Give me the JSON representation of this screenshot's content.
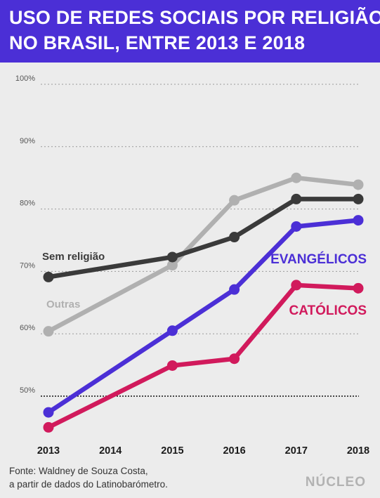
{
  "title": {
    "line1": "USO DE REDES SOCIAIS POR RELIGIÃO",
    "line2": "NO BRASIL, ENTRE 2013 E 2018"
  },
  "footer": {
    "line1": "Fonte: Waldney de Souza Costa,",
    "line2": "a partir de dados do Latinobarómetro."
  },
  "brand": "NÚCLEO",
  "colors": {
    "header_bg": "#4b2fd6",
    "background": "#ececec",
    "sem_religiao": "#3a3a3a",
    "outras": "#b0b0b0",
    "evangelicos": "#4b2fd6",
    "catolicos": "#d11a5c"
  },
  "chart_data": {
    "type": "line",
    "x": [
      "2013",
      "2014",
      "2015",
      "2016",
      "2017",
      "2018"
    ],
    "ylim": [
      45,
      100
    ],
    "y_ticks": [
      "50%",
      "60%",
      "70%",
      "80%",
      "90%",
      "100%"
    ],
    "grid": true,
    "series": [
      {
        "name": "Outras",
        "color": "#b0b0b0",
        "points": [
          [
            2013,
            60.4
          ],
          [
            2015,
            71.0
          ],
          [
            2016,
            81.4
          ],
          [
            2017,
            85.0
          ],
          [
            2018,
            83.9
          ]
        ]
      },
      {
        "name": "Sem religião",
        "color": "#3a3a3a",
        "points": [
          [
            2013,
            69.1
          ],
          [
            2015,
            72.3
          ],
          [
            2016,
            75.5
          ],
          [
            2017,
            81.6
          ],
          [
            2018,
            81.6
          ]
        ]
      },
      {
        "name": "EVANGÉLICOS",
        "color": "#4b2fd6",
        "points": [
          [
            2013,
            47.4
          ],
          [
            2015,
            60.5
          ],
          [
            2016,
            67.1
          ],
          [
            2017,
            77.2
          ],
          [
            2018,
            78.2
          ]
        ]
      },
      {
        "name": "CATÓLICOS",
        "color": "#d11a5c",
        "points": [
          [
            2013,
            45.0
          ],
          [
            2015,
            54.9
          ],
          [
            2016,
            56.0
          ],
          [
            2017,
            67.8
          ],
          [
            2018,
            67.3
          ]
        ]
      }
    ]
  }
}
